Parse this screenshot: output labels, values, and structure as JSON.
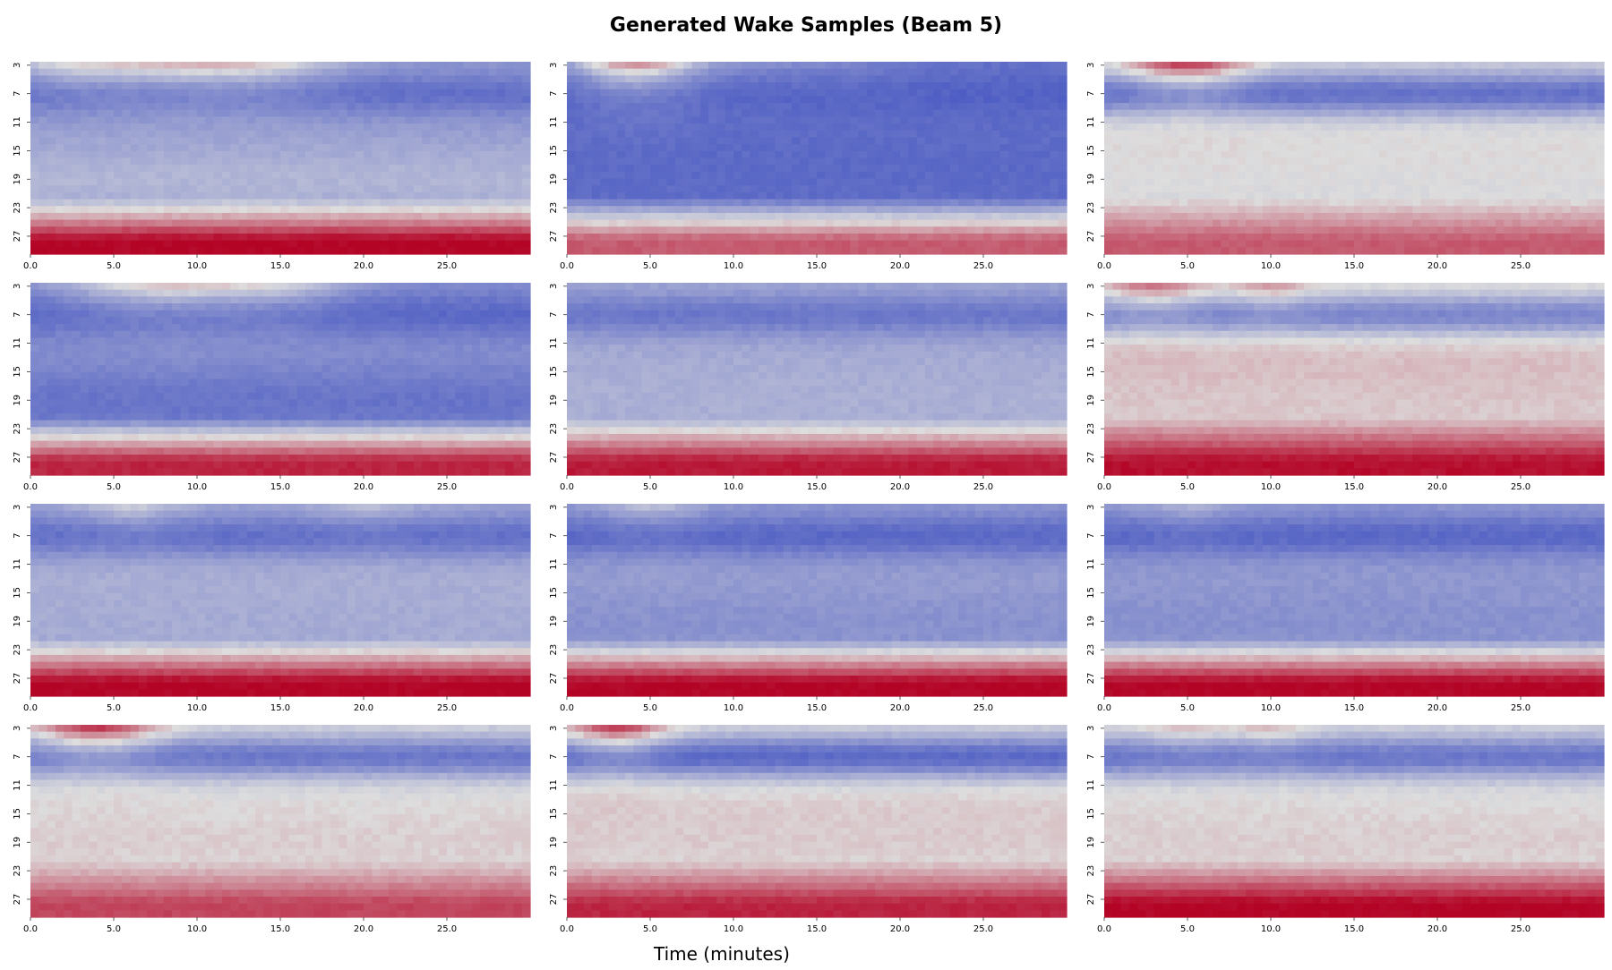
{
  "figure": {
    "title": "Generated Wake Samples (Beam 5)",
    "xlabel": "Time (minutes)"
  },
  "chart_data": {
    "type": "heatmap",
    "layout": {
      "rows": 4,
      "cols": 3
    },
    "colormap": "coolwarm",
    "colors": {
      "low": "#3b4cc0",
      "mid": "#dddddd",
      "high": "#b40426"
    },
    "x_range": [
      0,
      30
    ],
    "x_ticks": [
      0,
      5,
      10,
      15,
      20,
      25
    ],
    "x_tick_labels": [
      "0.0",
      "5.0",
      "10.0",
      "15.0",
      "20.0",
      "25.0"
    ],
    "y_range": [
      3,
      30
    ],
    "y_ticks": [
      3,
      7,
      11,
      15,
      19,
      23,
      27
    ],
    "y_tick_labels": [
      "3",
      "7",
      "11",
      "15",
      "19",
      "23",
      "27"
    ],
    "y_inverted": true,
    "grid": false,
    "grid_resolution": {
      "time_bins": 60,
      "range_bins": 28
    },
    "samples": [
      {
        "base": -0.45,
        "bottom": 1.0,
        "upper_blue": -0.75,
        "mid_blue": -0.45,
        "lower_blue": -0.2,
        "top_bumps": [
          {
            "t": 3,
            "w": 3,
            "amp": 0.5
          },
          {
            "t": 9,
            "w": 3,
            "amp": 0.5
          },
          {
            "t": 14,
            "w": 3,
            "amp": 0.5
          }
        ]
      },
      {
        "base": -0.75,
        "bottom": 0.6,
        "upper_blue": -0.85,
        "mid_blue": -0.8,
        "lower_blue": -0.8,
        "top_bumps": [
          {
            "t": 4,
            "w": 2.5,
            "amp": 1.0
          },
          {
            "t": 12,
            "w": 6,
            "amp": 0.2
          }
        ]
      },
      {
        "base": -0.05,
        "bottom": 0.6,
        "upper_blue": -0.75,
        "mid_blue": 0.05,
        "lower_blue": 0.0,
        "top_bumps": [
          {
            "t": 5,
            "w": 2.5,
            "amp": 1.0
          }
        ]
      },
      {
        "base": -0.55,
        "bottom": 0.85,
        "upper_blue": -0.8,
        "mid_blue": -0.5,
        "lower_blue": -0.8,
        "top_bumps": [
          {
            "t": 8,
            "w": 4,
            "amp": 0.7
          },
          {
            "t": 15,
            "w": 3,
            "amp": 0.4
          }
        ]
      },
      {
        "base": -0.35,
        "bottom": 0.9,
        "upper_blue": -0.7,
        "mid_blue": -0.35,
        "lower_blue": -0.3,
        "top_bumps": []
      },
      {
        "base": 0.1,
        "bottom": 0.95,
        "upper_blue": -0.6,
        "mid_blue": 0.2,
        "lower_blue": 0.1,
        "top_bumps": [
          {
            "t": 3,
            "w": 2,
            "amp": 0.6
          },
          {
            "t": 10,
            "w": 1.5,
            "amp": 0.4
          }
        ]
      },
      {
        "base": -0.35,
        "bottom": 1.0,
        "upper_blue": -0.75,
        "mid_blue": -0.3,
        "lower_blue": -0.35,
        "top_bumps": [
          {
            "t": 6,
            "w": 2,
            "amp": 0.3
          },
          {
            "t": 20,
            "w": 2,
            "amp": 0.2
          }
        ]
      },
      {
        "base": -0.45,
        "bottom": 1.0,
        "upper_blue": -0.8,
        "mid_blue": -0.4,
        "lower_blue": -0.55,
        "top_bumps": [
          {
            "t": 5,
            "w": 2,
            "amp": 0.3
          }
        ]
      },
      {
        "base": -0.45,
        "bottom": 1.0,
        "upper_blue": -0.8,
        "mid_blue": -0.45,
        "lower_blue": -0.55,
        "top_bumps": [
          {
            "t": 5,
            "w": 2,
            "amp": 0.2
          }
        ]
      },
      {
        "base": 0.0,
        "bottom": 0.7,
        "upper_blue": -0.7,
        "mid_blue": 0.0,
        "lower_blue": 0.1,
        "top_bumps": [
          {
            "t": 4,
            "w": 2.5,
            "amp": 1.0
          }
        ]
      },
      {
        "base": 0.0,
        "bottom": 0.85,
        "upper_blue": -0.8,
        "mid_blue": 0.1,
        "lower_blue": 0.1,
        "top_bumps": [
          {
            "t": 3,
            "w": 2,
            "amp": 1.0
          }
        ]
      },
      {
        "base": 0.0,
        "bottom": 1.0,
        "upper_blue": -0.7,
        "mid_blue": 0.0,
        "lower_blue": 0.1,
        "top_bumps": [
          {
            "t": 5,
            "w": 2,
            "amp": 0.3
          },
          {
            "t": 10,
            "w": 1.5,
            "amp": 0.3
          }
        ]
      }
    ]
  }
}
